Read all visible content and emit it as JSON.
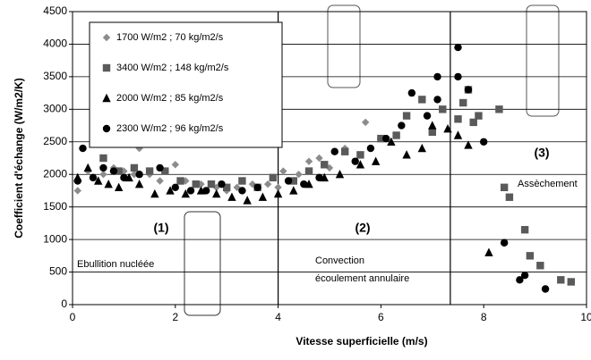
{
  "chart_data": {
    "type": "scatter",
    "xlabel": "Vitesse superficielle (m/s)",
    "ylabel": "Coefficient d'échange (W/m2/K)",
    "xlim": [
      0,
      10
    ],
    "xticks": [
      0,
      2,
      4,
      6,
      8,
      10
    ],
    "ylim": [
      0,
      4500
    ],
    "yticks": [
      0,
      500,
      1000,
      1500,
      2000,
      2500,
      3000,
      3500,
      4000,
      4500
    ],
    "grid": true,
    "legend": "upper left",
    "dividers": [
      4,
      7.35
    ],
    "annotations": [
      "(1)",
      "(2)",
      "(3)",
      "Ebullition nucléée",
      "Convection",
      "écoulement annulaire",
      "Assèchement"
    ],
    "series": [
      {
        "name": "1700 W/m2 ; 70 kg/m2/s",
        "color": "#8c8c8c",
        "marker": "diamond",
        "x": [
          0.1,
          0.3,
          0.6,
          0.8,
          1.0,
          1.2,
          1.3,
          1.5,
          1.7,
          2.0,
          2.2,
          2.5,
          2.8,
          3.0,
          3.2,
          3.5,
          3.8,
          4.0,
          4.1,
          4.4,
          4.6,
          4.8,
          5.0,
          5.3,
          5.7,
          6.1
        ],
        "values": [
          1750,
          2050,
          2000,
          2100,
          2050,
          2000,
          2400,
          2000,
          1900,
          2150,
          1900,
          1850,
          1800,
          1750,
          1800,
          1850,
          1850,
          1800,
          2050,
          2000,
          2200,
          2250,
          2100,
          2400,
          2800,
          2550
        ]
      },
      {
        "name": "3400 W/m2 ; 148 kg/m2/s",
        "color": "#5a5a5a",
        "marker": "square",
        "x": [
          0.6,
          0.9,
          1.2,
          1.5,
          1.8,
          2.1,
          2.4,
          2.7,
          3.0,
          3.3,
          3.6,
          3.9,
          4.3,
          4.6,
          4.9,
          5.3,
          5.6,
          6.0,
          6.3,
          6.5,
          6.8,
          7.0,
          7.2,
          7.5,
          7.6,
          7.7,
          7.8,
          7.9,
          8.3,
          8.4,
          8.5,
          8.8,
          8.9,
          9.1,
          9.5,
          9.7
        ],
        "values": [
          2250,
          2050,
          2100,
          2050,
          2050,
          1900,
          1850,
          1850,
          1800,
          1900,
          1800,
          1950,
          1900,
          2050,
          2150,
          2350,
          2300,
          2550,
          2600,
          2900,
          3150,
          2650,
          3000,
          2850,
          3100,
          3300,
          2800,
          2900,
          3000,
          1800,
          1650,
          1150,
          750,
          600,
          380,
          350
        ]
      },
      {
        "name": "2000 W/m2 ; 85 kg/m2/s",
        "color": "#000000",
        "marker": "triangle",
        "x": [
          0.1,
          0.3,
          0.5,
          0.7,
          0.9,
          1.1,
          1.3,
          1.6,
          1.9,
          2.2,
          2.5,
          2.8,
          3.1,
          3.4,
          3.7,
          4.0,
          4.3,
          4.6,
          4.9,
          5.2,
          5.6,
          5.9,
          6.2,
          6.5,
          6.8,
          7.0,
          7.3,
          7.5,
          7.7,
          8.1
        ],
        "values": [
          1950,
          2100,
          1900,
          1850,
          1800,
          1950,
          1850,
          1700,
          1750,
          1700,
          1750,
          1700,
          1650,
          1600,
          1650,
          1700,
          1750,
          1850,
          1950,
          2000,
          2150,
          2200,
          2500,
          2300,
          2400,
          2750,
          2700,
          2600,
          2450,
          800
        ]
      },
      {
        "name": "2300 W/m2 ; 96 kg/m2/s",
        "color": "#000000",
        "marker": "circle",
        "x": [
          0.1,
          0.2,
          0.4,
          0.6,
          0.8,
          1.0,
          1.3,
          1.7,
          2.0,
          2.3,
          2.6,
          2.9,
          3.3,
          3.6,
          4.2,
          4.5,
          4.8,
          5.1,
          5.5,
          5.8,
          6.1,
          6.4,
          6.6,
          6.9,
          7.1,
          7.1,
          7.5,
          7.5,
          7.7,
          8.0,
          8.4,
          8.8,
          8.7,
          9.2
        ],
        "values": [
          1900,
          2400,
          1950,
          2100,
          2050,
          1950,
          2000,
          2100,
          1800,
          1750,
          1750,
          1850,
          1750,
          1800,
          1900,
          1850,
          1950,
          2350,
          2200,
          2400,
          2550,
          2750,
          3250,
          2900,
          3150,
          3500,
          3950,
          3500,
          3300,
          2500,
          950,
          450,
          380,
          240
        ]
      }
    ]
  }
}
